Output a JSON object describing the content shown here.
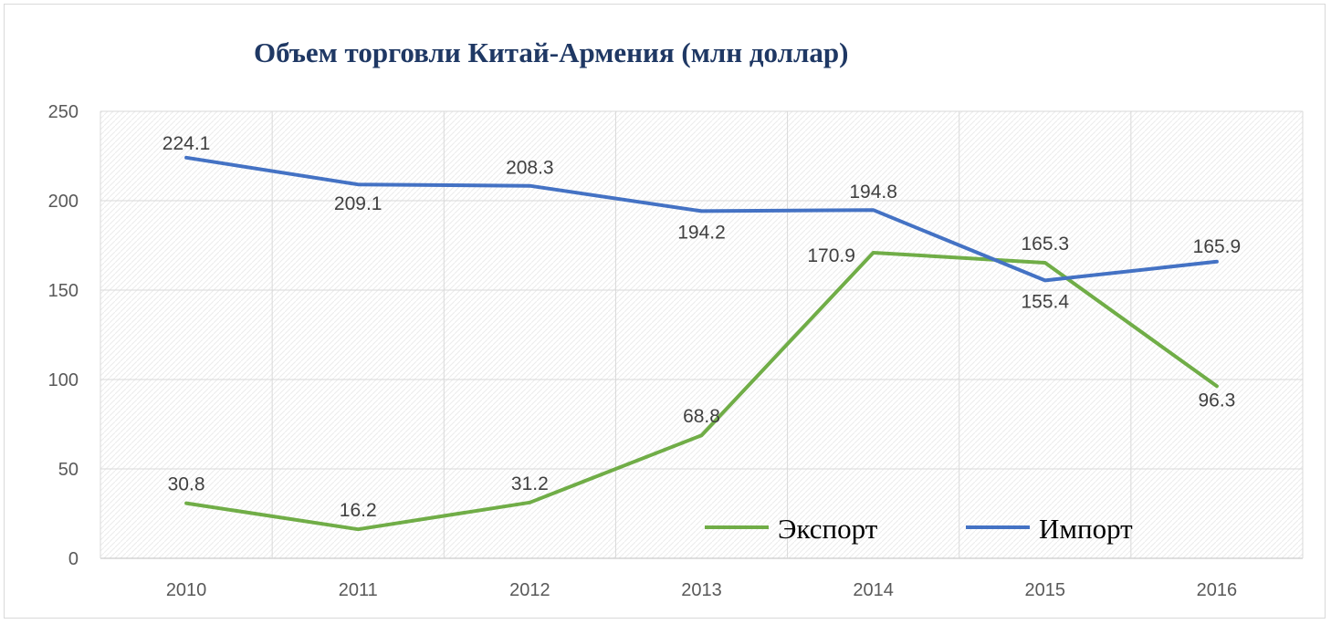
{
  "chart_data": {
    "type": "line",
    "title": "Объем торговли Китай-Армения (млн доллар)",
    "categories": [
      "2010",
      "2011",
      "2012",
      "2013",
      "2014",
      "2015",
      "2016"
    ],
    "ylim": [
      0,
      250
    ],
    "yticks": [
      "0",
      "50",
      "100",
      "150",
      "200",
      "250"
    ],
    "grid": true,
    "legend_position": "bottom-right",
    "series": [
      {
        "name": "Экспорт",
        "color": "#70ad47",
        "values": [
          30.8,
          16.2,
          31.2,
          68.8,
          170.9,
          165.3,
          96.3
        ],
        "labels": [
          "30.8",
          "16.2",
          "31.2",
          "68.8",
          "170.9",
          "165.3",
          "96.3"
        ]
      },
      {
        "name": "Импорт",
        "color": "#4472c4",
        "values": [
          224.1,
          209.1,
          208.3,
          194.2,
          194.8,
          155.4,
          165.9
        ],
        "labels": [
          "224.1",
          "209.1",
          "208.3",
          "194.2",
          "194.8",
          "155.4",
          "165.9"
        ]
      }
    ]
  }
}
